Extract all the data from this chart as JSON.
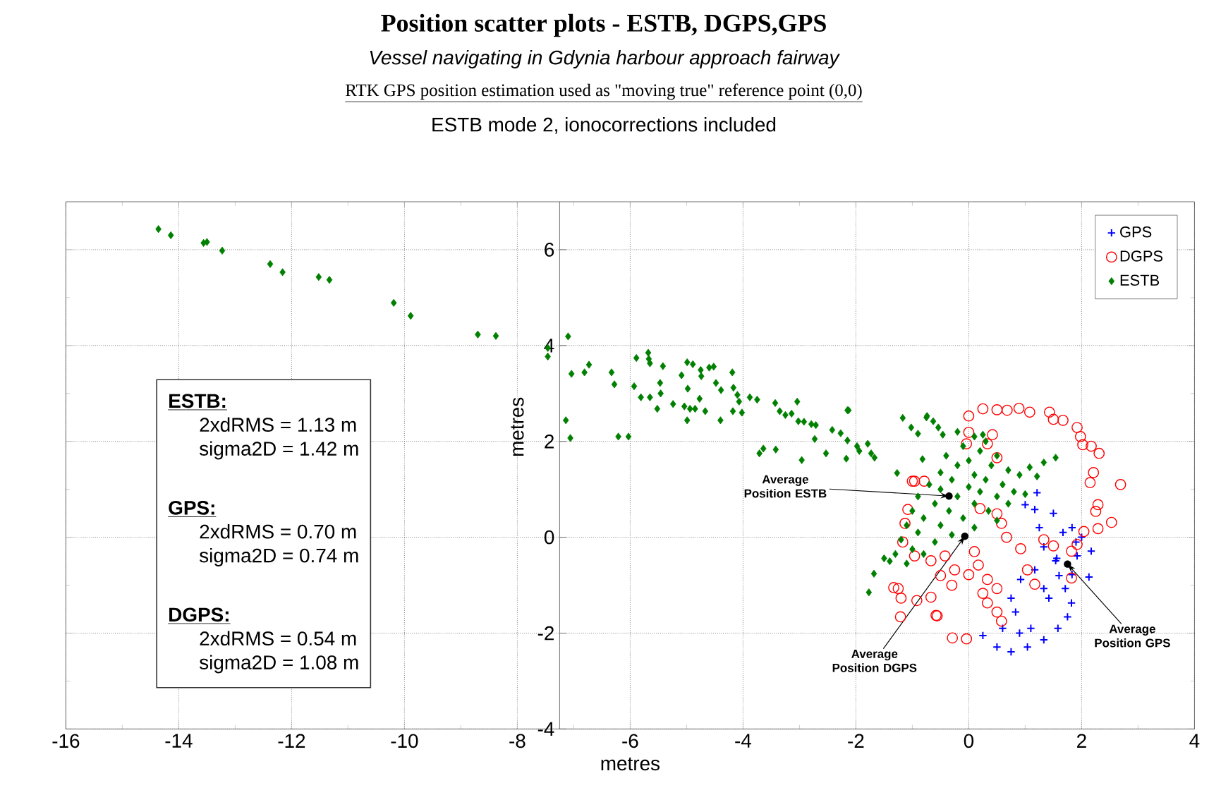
{
  "chart_data": {
    "type": "scatter",
    "title": "Position scatter plots - ESTB, DGPS,GPS",
    "subtitle": "Vessel navigating in Gdynia harbour approach fairway",
    "xlabel": "metres",
    "ylabel": "metres",
    "annotations": [
      "RTK GPS position estimation used as \"moving true\" reference point (0,0)",
      "ESTB mode 2, ionocorrections included",
      "ESTB:",
      "2xdRMS  = 1.13 m",
      "sigma2D = 1.42 m",
      "GPS:",
      "2xdRMS  = 0.70 m",
      "sigma2D = 0.74 m",
      "DGPS:",
      "2xdRMS  = 0.54 m",
      "sigma2D = 1.08 m",
      {
        "text": "Average Position ESTB",
        "x": -0.35,
        "y": 0.86
      },
      {
        "text": "Average Position DGPS",
        "x": -0.07,
        "y": 0.02
      },
      {
        "text": "Average Position GPS",
        "x": 1.75,
        "y": -0.56
      }
    ],
    "xlim": [
      -16,
      4
    ],
    "ylim": [
      -4,
      7
    ],
    "xticks": [
      -16,
      -14,
      -12,
      -10,
      -8,
      -6,
      -4,
      -2,
      0,
      2,
      4
    ],
    "yticks": [
      -4,
      -2,
      0,
      2,
      4,
      6
    ],
    "grid": true,
    "legend": "top right",
    "series": [
      {
        "name": "GPS",
        "color": "#0000ff",
        "marker": "cross",
        "x": [
          1.21,
          1.17,
          1.25,
          1.0,
          1.33,
          1.67,
          1.83,
          2.0,
          2.17,
          2.13,
          1.83,
          1.71,
          1.82,
          1.75,
          1.58,
          1.33,
          1.04,
          0.75,
          0.5,
          0.25,
          0.83,
          0.75,
          0.92,
          1.17,
          1.42,
          1.33,
          1.54,
          1.92,
          1.1,
          0.6,
          1.5,
          1.9,
          0.9,
          1.6,
          1.56
        ],
        "values": [
          0.93,
          0.58,
          0.2,
          0.68,
          -0.2,
          0.1,
          0.2,
          0,
          -0.29,
          -0.83,
          -0.78,
          -1.07,
          -1.37,
          -1.66,
          -1.9,
          -2.14,
          -2.29,
          -2.39,
          -2.29,
          -2.05,
          -1.56,
          -1.27,
          -0.88,
          -0.68,
          -1.27,
          -1.07,
          -0.49,
          -0.39,
          -1.9,
          -1.9,
          0.5,
          -0.1,
          -2.0,
          -0.8,
          -0.44
        ]
      },
      {
        "name": "DGPS",
        "color": "#ff0000",
        "marker": "circle",
        "x": [
          0,
          0.25,
          0.5,
          0.68,
          0.89,
          1.08,
          1.43,
          1.5,
          1.67,
          1.92,
          1.98,
          2.02,
          2.17,
          2.31,
          2.21,
          2.15,
          2.69,
          2.29,
          2.25,
          2.53,
          2.29,
          2.04,
          1.92,
          1.82,
          1.82,
          1.5,
          1.33,
          -0.29,
          -0.04,
          -0.56,
          -1.21,
          -1.33,
          -1.2,
          -0.92,
          -0.67,
          0.58,
          0.5,
          0.33,
          1.17,
          1.04,
          0.92,
          0.67,
          0.58,
          0.5,
          -0.96,
          -0.79,
          -1.08,
          -1.13,
          -1.17,
          -0.96,
          -0.67,
          -0.42,
          -0.25,
          0,
          0.17,
          0.33,
          0.5,
          0.25,
          0,
          0.33,
          0.42,
          -0.04,
          0.5,
          -1.0,
          -1.25,
          -0.58,
          -0.3,
          0.1,
          0.2,
          -0.5
        ],
        "values": [
          2.53,
          2.68,
          2.66,
          2.65,
          2.69,
          2.61,
          2.61,
          2.46,
          2.44,
          2.29,
          2.1,
          1.93,
          1.9,
          1.75,
          1.35,
          1.14,
          1.1,
          0.68,
          0.54,
          0.31,
          0.18,
          0.12,
          -0.15,
          -0.29,
          -0.85,
          -0.18,
          -0.05,
          -2.1,
          -2.12,
          -1.64,
          -1.66,
          -1.05,
          -1.27,
          -1.32,
          -1.25,
          -1.75,
          -1.56,
          -1.37,
          -0.98,
          -0.68,
          -0.24,
          0,
          0.29,
          0.49,
          1.17,
          1.17,
          0.58,
          0.29,
          -0.1,
          -0.39,
          -0.49,
          -0.39,
          -0.68,
          -0.78,
          -0.58,
          -0.88,
          -1.07,
          -1.17,
          2.19,
          1.95,
          2.14,
          1.95,
          1.66,
          1.17,
          -1.07,
          -1.63,
          -1.0,
          -0.3,
          0.6,
          -0.8
        ]
      },
      {
        "name": "ESTB",
        "color": "#008000",
        "marker": "diamond",
        "x": [
          -14.36,
          -14.14,
          -13.56,
          -13.5,
          -13.23,
          -12.38,
          -12.16,
          -11.52,
          -11.33,
          -10.19,
          -9.89,
          -8.7,
          -8.38,
          -7.46,
          -7.46,
          -7.1,
          -7.14,
          -7.06,
          -7.04,
          -6.81,
          -6.73,
          -6.33,
          -6.28,
          -6.21,
          -6.03,
          -5.93,
          -5.89,
          -5.81,
          -5.68,
          -5.67,
          -5.65,
          -5.65,
          -5.52,
          -5.47,
          -5.42,
          -5.46,
          -5.24,
          -5.09,
          -5.04,
          -4.99,
          -4.98,
          -4.99,
          -4.89,
          -4.94,
          -4.85,
          -4.75,
          -4.77,
          -4.67,
          -4.74,
          -4.6,
          -4.52,
          -4.48,
          -4.39,
          -4.4,
          -4.19,
          -4.18,
          -4.17,
          -4.1,
          -4.07,
          -4.02,
          -3.88,
          -3.75,
          -3.71,
          -3.64,
          -3.43,
          -3.42,
          -3.35,
          -3.25,
          -3.14,
          -3.04,
          -3.02,
          -2.92,
          -2.79,
          -2.71,
          -2.96,
          -2.73,
          -2.53,
          -2.42,
          -2.27,
          -2.15,
          -2.15,
          -2.17,
          -1.98,
          -1.94,
          -1.79,
          -1.73,
          -1.67,
          -1.27,
          -1.17,
          -1.02,
          -0.9,
          -0.82,
          -0.74,
          -0.63,
          -0.54,
          -0.46,
          -2.13,
          -0.75,
          1.54,
          1.33,
          1.08,
          1.21,
          -1.68,
          -1.77,
          -1.5,
          0.25,
          -0.2,
          0.1,
          0.3,
          -0.1,
          0.2,
          0.5,
          -0.4,
          0.0,
          0.4,
          -0.2,
          0.7,
          -0.5,
          0.1,
          0.9,
          -0.3,
          0.3,
          -0.7,
          0.6,
          0.0,
          -0.5,
          0.2,
          0.8,
          -0.9,
          -0.2,
          0.5,
          1.0,
          -0.6,
          0.1,
          0.7,
          -1.0,
          -0.35,
          0.35,
          -0.8,
          -0.1,
          0.5,
          -1.1,
          -0.5,
          0.1,
          -0.9,
          -0.3,
          -1.2,
          -0.6,
          -1.0,
          -1.3,
          -0.8,
          -1.4,
          -1.1
        ],
        "values": [
          6.43,
          6.3,
          6.14,
          6.16,
          5.98,
          5.7,
          5.53,
          5.43,
          5.37,
          4.89,
          4.62,
          4.23,
          4.2,
          3.95,
          3.77,
          4.19,
          2.44,
          2.07,
          3.41,
          3.44,
          3.6,
          3.44,
          3.19,
          2.1,
          2.1,
          3.15,
          3.74,
          2.92,
          3.85,
          3.72,
          3.63,
          2.92,
          2.68,
          3.22,
          3.57,
          3.0,
          2.78,
          3.38,
          2.73,
          3.65,
          3.1,
          2.44,
          3.61,
          2.68,
          2.68,
          3.49,
          2.89,
          2.63,
          3.36,
          3.54,
          3.56,
          3.22,
          3.07,
          2.44,
          3.44,
          2.63,
          3.12,
          2.97,
          2.83,
          2.6,
          2.92,
          2.87,
          1.75,
          1.85,
          2.8,
          1.83,
          2.63,
          2.55,
          2.58,
          2.83,
          2.42,
          2.41,
          2.36,
          2.34,
          1.61,
          2.05,
          1.75,
          2.24,
          2.17,
          2.65,
          2.02,
          1.64,
          1.9,
          1.8,
          1.95,
          1.75,
          1.66,
          1.34,
          2.49,
          2.29,
          2.16,
          1.63,
          2.53,
          2.42,
          2.29,
          2.14,
          2.65,
          2.5,
          1.66,
          1.56,
          1.46,
          1.27,
          -0.76,
          -1.15,
          -0.44,
          2.14,
          2.2,
          2.1,
          2.0,
          1.9,
          1.8,
          1.7,
          1.7,
          1.6,
          1.5,
          1.5,
          1.4,
          1.35,
          1.3,
          1.3,
          1.2,
          1.2,
          1.1,
          1.1,
          1.05,
          1.0,
          0.95,
          0.95,
          0.85,
          0.85,
          0.85,
          0.9,
          0.7,
          0.7,
          0.7,
          0.55,
          0.55,
          0.55,
          0.4,
          0.4,
          0.35,
          0.25,
          0.25,
          0.2,
          0.1,
          0.05,
          -0.05,
          -0.1,
          -0.25,
          -0.35,
          -0.35,
          -0.5,
          -0.55
        ]
      }
    ]
  }
}
